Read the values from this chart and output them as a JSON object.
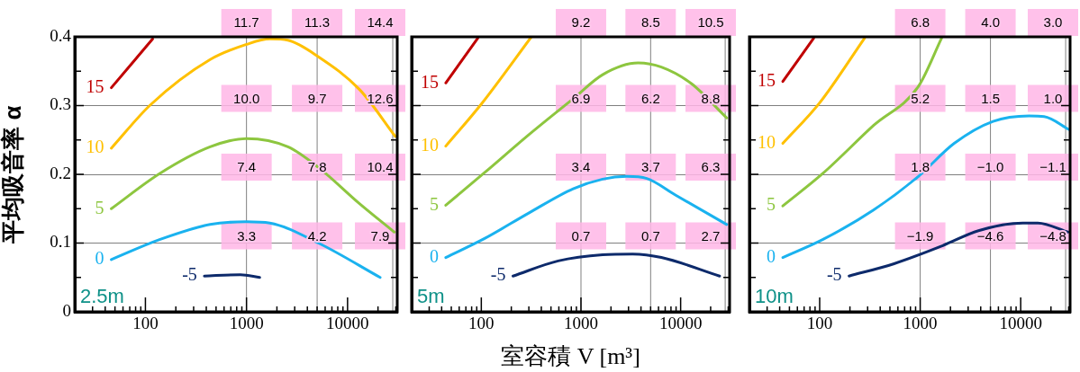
{
  "chart_data": [
    {
      "type": "line",
      "ylabel": "平均吸音率 α",
      "xlim": [
        20,
        31000
      ],
      "ylim": [
        0,
        0.4
      ],
      "log": "x",
      "grid": "y",
      "legend": false,
      "xticks": [
        {
          "value": 30,
          "label": null
        },
        {
          "value": 40,
          "label": null
        },
        {
          "value": 50,
          "label": null
        },
        {
          "value": 60,
          "label": null
        },
        {
          "value": 70,
          "label": null
        },
        {
          "value": 80,
          "label": null
        },
        {
          "value": 90,
          "label": null
        },
        100,
        {
          "value": 200,
          "label": null
        },
        {
          "value": 300,
          "label": null
        },
        {
          "value": 400,
          "label": null
        },
        {
          "value": 500,
          "label": null
        },
        {
          "value": 600,
          "label": null
        },
        {
          "value": 700,
          "label": null
        },
        {
          "value": 800,
          "label": null
        },
        {
          "value": 900,
          "label": null
        },
        1000,
        {
          "value": 2000,
          "label": null
        },
        {
          "value": 3000,
          "label": null
        },
        {
          "value": 4000,
          "label": null
        },
        {
          "value": 5000,
          "label": null
        },
        {
          "value": 6000,
          "label": null
        },
        {
          "value": 7000,
          "label": null
        },
        {
          "value": 8000,
          "label": null
        },
        {
          "value": 9000,
          "label": null
        },
        10000,
        {
          "value": 20000,
          "label": null
        },
        {
          "value": 30000,
          "label": null
        }
      ],
      "yticks": [
        0,
        {
          "value": 0.05,
          "label": null
        },
        0.1,
        {
          "value": 0.15,
          "label": null
        },
        0.2,
        {
          "value": 0.25,
          "label": null
        },
        0.3,
        {
          "value": 0.35,
          "label": null
        },
        0.4
      ],
      "ref_lines": [
        {
          "axis": "x",
          "value": 1000,
          "color": "#808080"
        },
        {
          "axis": "x",
          "value": 5000,
          "color": "#808080"
        },
        {
          "axis": "x",
          "value": 28000,
          "color": "#808080"
        }
      ],
      "series": [
        {
          "name": "15",
          "color": "#c00000",
          "x": [
            46,
            118
          ],
          "values": [
            0.326,
            0.397
          ]
        },
        {
          "name": "10",
          "color": "#ffc000",
          "x": [
            46,
            112,
            437,
            1000,
            1700,
            2570,
            5150,
            13200,
            29700
          ],
          "values": [
            0.238,
            0.301,
            0.367,
            0.389,
            0.397,
            0.395,
            0.371,
            0.323,
            0.255
          ]
        },
        {
          "name": "5",
          "color": "#8dc63f",
          "x": [
            46,
            138,
            437,
            1000,
            2570,
            5150,
            13200,
            29000
          ],
          "values": [
            0.15,
            0.201,
            0.24,
            0.252,
            0.24,
            0.21,
            0.157,
            0.116
          ]
        },
        {
          "name": "0",
          "color": "#1ab2ef",
          "x": [
            46,
            138,
            437,
            1000,
            1700,
            5150,
            21000
          ],
          "values": [
            0.076,
            0.105,
            0.127,
            0.131,
            0.129,
            0.1,
            0.05
          ]
        },
        {
          "name": "-5",
          "color": "#0d2a6b",
          "x": [
            383,
            870,
            1350
          ],
          "values": [
            0.052,
            0.054,
            0.05
          ]
        }
      ],
      "annotations": [
        "2.5m",
        {
          "text": "11.7",
          "x": 1000,
          "y": 0.4
        },
        {
          "text": "11.3",
          "x": 5000,
          "y": 0.4
        },
        {
          "text": "14.4",
          "x": 28000,
          "y": 0.4
        },
        {
          "text": "10.0",
          "x": 1000,
          "y": 0.3
        },
        {
          "text": "9.7",
          "x": 5000,
          "y": 0.3
        },
        {
          "text": "12.6",
          "x": 28000,
          "y": 0.3
        },
        {
          "text": "7.4",
          "x": 1000,
          "y": 0.2
        },
        {
          "text": "7.8",
          "x": 5000,
          "y": 0.2
        },
        {
          "text": "10.4",
          "x": 28000,
          "y": 0.2
        },
        {
          "text": "3.3",
          "x": 1000,
          "y": 0.1
        },
        {
          "text": "4.2",
          "x": 5000,
          "y": 0.1
        },
        {
          "text": "7.9",
          "x": 28000,
          "y": 0.1
        }
      ]
    },
    {
      "type": "line",
      "xlabel": "室容積 V [m³]",
      "xlim": [
        20,
        31000
      ],
      "ylim": [
        0,
        0.4
      ],
      "log": "x",
      "grid": "y",
      "legend": false,
      "tick_labels": "x",
      "xticks": [
        {
          "value": 30,
          "label": null
        },
        {
          "value": 40,
          "label": null
        },
        {
          "value": 50,
          "label": null
        },
        {
          "value": 60,
          "label": null
        },
        {
          "value": 70,
          "label": null
        },
        {
          "value": 80,
          "label": null
        },
        {
          "value": 90,
          "label": null
        },
        100,
        {
          "value": 200,
          "label": null
        },
        {
          "value": 300,
          "label": null
        },
        {
          "value": 400,
          "label": null
        },
        {
          "value": 500,
          "label": null
        },
        {
          "value": 600,
          "label": null
        },
        {
          "value": 700,
          "label": null
        },
        {
          "value": 800,
          "label": null
        },
        {
          "value": 900,
          "label": null
        },
        1000,
        {
          "value": 2000,
          "label": null
        },
        {
          "value": 3000,
          "label": null
        },
        {
          "value": 4000,
          "label": null
        },
        {
          "value": 5000,
          "label": null
        },
        {
          "value": 6000,
          "label": null
        },
        {
          "value": 7000,
          "label": null
        },
        {
          "value": 8000,
          "label": null
        },
        {
          "value": 9000,
          "label": null
        },
        10000,
        {
          "value": 20000,
          "label": null
        },
        {
          "value": 30000,
          "label": null
        }
      ],
      "yticks": [
        0,
        {
          "value": 0.05,
          "label": null
        },
        0.1,
        {
          "value": 0.15,
          "label": null
        },
        0.2,
        {
          "value": 0.25,
          "label": null
        },
        0.3,
        {
          "value": 0.35,
          "label": null
        },
        0.4
      ],
      "ref_lines": [
        {
          "axis": "x",
          "value": 1000,
          "color": "#808080"
        },
        {
          "axis": "x",
          "value": 5000,
          "color": "#808080"
        },
        {
          "axis": "x",
          "value": 28000,
          "color": "#808080"
        }
      ],
      "series": [
        {
          "name": "15",
          "color": "#c00000",
          "x": [
            44,
            92
          ],
          "values": [
            0.333,
            0.398
          ]
        },
        {
          "name": "10",
          "color": "#ffc000",
          "x": [
            44,
            101,
            318
          ],
          "values": [
            0.241,
            0.303,
            0.4
          ]
        },
        {
          "name": "5",
          "color": "#8dc63f",
          "x": [
            44,
            109,
            302,
            835,
            1650,
            3740,
            6400,
            12800,
            29000
          ],
          "values": [
            0.155,
            0.203,
            0.258,
            0.31,
            0.345,
            0.362,
            0.356,
            0.332,
            0.282
          ]
        },
        {
          "name": "0",
          "color": "#1ab2ef",
          "x": [
            44,
            109,
            302,
            835,
            1650,
            2870,
            4570,
            8850,
            29000
          ],
          "values": [
            0.079,
            0.107,
            0.144,
            0.179,
            0.193,
            0.197,
            0.194,
            0.17,
            0.127
          ]
        },
        {
          "name": "-5",
          "color": "#0d2a6b",
          "x": [
            208,
            590,
            1650,
            3300,
            6400,
            24600
          ],
          "values": [
            0.052,
            0.074,
            0.083,
            0.084,
            0.079,
            0.052
          ]
        }
      ],
      "annotations": [
        "5m",
        {
          "text": "9.2",
          "x": 1000,
          "y": 0.4
        },
        {
          "text": "8.5",
          "x": 5000,
          "y": 0.4
        },
        {
          "text": "10.5",
          "x": 28000,
          "y": 0.4
        },
        {
          "text": "6.9",
          "x": 1000,
          "y": 0.3
        },
        {
          "text": "6.2",
          "x": 5000,
          "y": 0.3
        },
        {
          "text": "8.8",
          "x": 28000,
          "y": 0.3
        },
        {
          "text": "3.4",
          "x": 1000,
          "y": 0.2
        },
        {
          "text": "3.7",
          "x": 5000,
          "y": 0.2
        },
        {
          "text": "6.3",
          "x": 28000,
          "y": 0.2
        },
        {
          "text": "0.7",
          "x": 1000,
          "y": 0.1
        },
        {
          "text": "0.7",
          "x": 5000,
          "y": 0.1
        },
        {
          "text": "2.7",
          "x": 28000,
          "y": 0.1
        }
      ]
    },
    {
      "type": "line",
      "xlim": [
        20,
        31000
      ],
      "ylim": [
        0,
        0.4
      ],
      "log": "x",
      "grid": "y",
      "legend": false,
      "tick_labels": "x",
      "xticks": [
        {
          "value": 30,
          "label": null
        },
        {
          "value": 40,
          "label": null
        },
        {
          "value": 50,
          "label": null
        },
        {
          "value": 60,
          "label": null
        },
        {
          "value": 70,
          "label": null
        },
        {
          "value": 80,
          "label": null
        },
        {
          "value": 90,
          "label": null
        },
        100,
        {
          "value": 200,
          "label": null
        },
        {
          "value": 300,
          "label": null
        },
        {
          "value": 400,
          "label": null
        },
        {
          "value": 500,
          "label": null
        },
        {
          "value": 600,
          "label": null
        },
        {
          "value": 700,
          "label": null
        },
        {
          "value": 800,
          "label": null
        },
        {
          "value": 900,
          "label": null
        },
        1000,
        {
          "value": 2000,
          "label": null
        },
        {
          "value": 3000,
          "label": null
        },
        {
          "value": 4000,
          "label": null
        },
        {
          "value": 5000,
          "label": null
        },
        {
          "value": 6000,
          "label": null
        },
        {
          "value": 7000,
          "label": null
        },
        {
          "value": 8000,
          "label": null
        },
        {
          "value": 9000,
          "label": null
        },
        10000,
        {
          "value": 20000,
          "label": null
        },
        {
          "value": 30000,
          "label": null
        }
      ],
      "yticks": [
        0,
        {
          "value": 0.05,
          "label": null
        },
        0.1,
        {
          "value": 0.15,
          "label": null
        },
        0.2,
        {
          "value": 0.25,
          "label": null
        },
        0.3,
        {
          "value": 0.35,
          "label": null
        },
        0.4
      ],
      "ref_lines": [
        {
          "axis": "x",
          "value": 1000,
          "color": "#808080"
        },
        {
          "axis": "x",
          "value": 5000,
          "color": "#808080"
        },
        {
          "axis": "x",
          "value": 28000,
          "color": "#808080"
        }
      ],
      "series": [
        {
          "name": "15",
          "color": "#c00000",
          "x": [
            43,
            87
          ],
          "values": [
            0.335,
            0.398
          ]
        },
        {
          "name": "10",
          "color": "#ffc000",
          "x": [
            43,
            100,
            279
          ],
          "values": [
            0.245,
            0.304,
            0.398
          ]
        },
        {
          "name": "5",
          "color": "#8dc63f",
          "x": [
            43,
            107,
            343,
            960,
            1630
          ],
          "values": [
            0.154,
            0.201,
            0.271,
            0.328,
            0.398
          ]
        },
        {
          "name": "0",
          "color": "#1ab2ef",
          "x": [
            43,
            107,
            343,
            960,
            2180,
            5300,
            12100,
            17100,
            30500
          ],
          "values": [
            0.079,
            0.105,
            0.148,
            0.197,
            0.245,
            0.277,
            0.285,
            0.284,
            0.265
          ]
        },
        {
          "name": "-5",
          "color": "#0d2a6b",
          "x": [
            196,
            550,
            1660,
            3800,
            10500,
            14800,
            29500
          ],
          "values": [
            0.052,
            0.07,
            0.096,
            0.118,
            0.129,
            0.129,
            0.116
          ]
        }
      ],
      "annotations": [
        "10m",
        {
          "text": "6.8",
          "x": 1000,
          "y": 0.4
        },
        {
          "text": "4.0",
          "x": 5000,
          "y": 0.4
        },
        {
          "text": "3.0",
          "x": 28000,
          "y": 0.4
        },
        {
          "text": "5.2",
          "x": 1000,
          "y": 0.3
        },
        {
          "text": "1.5",
          "x": 5000,
          "y": 0.3
        },
        {
          "text": "1.0",
          "x": 28000,
          "y": 0.3
        },
        {
          "text": "1.8",
          "x": 1000,
          "y": 0.2
        },
        {
          "text": "−1.0",
          "x": 5000,
          "y": 0.2
        },
        {
          "text": "−1.1",
          "x": 28000,
          "y": 0.2
        },
        {
          "text": "−1.9",
          "x": 1000,
          "y": 0.1
        },
        {
          "text": "−4.6",
          "x": 5000,
          "y": 0.1
        },
        {
          "text": "−4.8",
          "x": 28000,
          "y": 0.1
        }
      ]
    }
  ]
}
